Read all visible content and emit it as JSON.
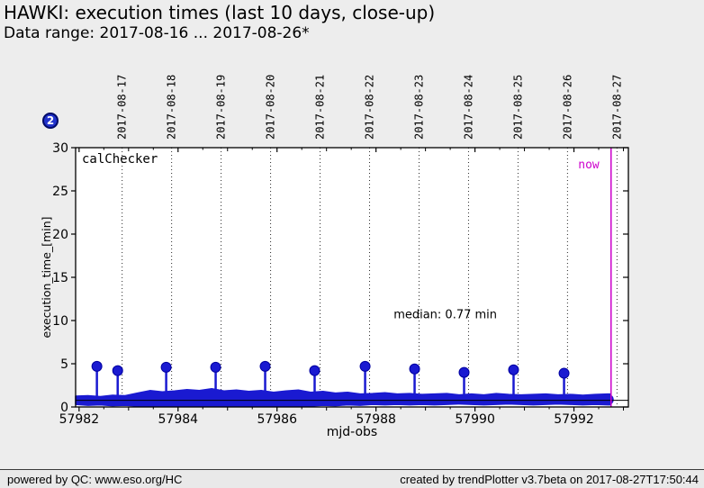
{
  "header": {
    "subtitle": "Data range: 2017-08-16 ... 2017-08-26*"
  },
  "badge": {
    "label": "2"
  },
  "footer": {
    "left": "powered by QC: www.eso.org/HC",
    "right": "created by trendPlotter v3.7beta on 2017-08-27T17:50:44"
  },
  "chart_data": {
    "type": "line",
    "title": "HAWKI: execution times (last 10 days, close-up)",
    "xlabel": "mjd-obs",
    "ylabel": "execution_time_[min]",
    "xlim": [
      57981.93,
      57993.1
    ],
    "ylim": [
      0,
      30
    ],
    "x_ticks_major": [
      57982,
      57984,
      57986,
      57988,
      57990,
      57992
    ],
    "x_ticks_minor": [
      57983,
      57985,
      57987,
      57989,
      57991,
      57993
    ],
    "x_ticks_small": [
      57982.5,
      57983.5,
      57984.5,
      57985.5,
      57986.5,
      57987.5,
      57988.5,
      57989.5,
      57990.5,
      57991.5,
      57992.5
    ],
    "y_ticks": [
      0,
      5,
      10,
      15,
      20,
      25,
      30
    ],
    "grid": "vertical-dotted-dates",
    "legend_label": "calChecker",
    "top_axis": {
      "dates": [
        "2017-08-17",
        "2017-08-18",
        "2017-08-19",
        "2017-08-20",
        "2017-08-21",
        "2017-08-22",
        "2017-08-23",
        "2017-08-24",
        "2017-08-25",
        "2017-08-26",
        "2017-08-27"
      ],
      "mjd": [
        57982.87,
        57983.87,
        57984.87,
        57985.87,
        57986.87,
        57987.87,
        57988.87,
        57989.87,
        57990.87,
        57991.87,
        57992.87
      ]
    },
    "median": {
      "value": 0.77,
      "label": "median: 0.77 min",
      "label_mjd": 57989.4,
      "label_y": 10.7
    },
    "now": {
      "mjd": 57992.75,
      "label": "now"
    },
    "spikes": [
      {
        "mjd": 57982.36,
        "value": 4.7
      },
      {
        "mjd": 57982.78,
        "value": 4.2
      },
      {
        "mjd": 57983.76,
        "value": 4.6
      },
      {
        "mjd": 57984.76,
        "value": 4.6
      },
      {
        "mjd": 57985.76,
        "value": 4.7
      },
      {
        "mjd": 57986.76,
        "value": 4.2
      },
      {
        "mjd": 57987.78,
        "value": 4.7
      },
      {
        "mjd": 57988.78,
        "value": 4.4
      },
      {
        "mjd": 57989.78,
        "value": 4.0
      },
      {
        "mjd": 57990.78,
        "value": 4.3
      },
      {
        "mjd": 57991.8,
        "value": 3.9
      }
    ],
    "band": {
      "x_start": 57981.93,
      "x_end": 57992.75,
      "step": 0.25,
      "hi": [
        1.25,
        1.3,
        1.2,
        1.35,
        1.3,
        1.6,
        1.9,
        1.75,
        1.85,
        2.0,
        1.9,
        2.1,
        1.85,
        1.95,
        1.8,
        1.9,
        1.7,
        1.85,
        1.95,
        1.7,
        1.8,
        1.6,
        1.7,
        1.5,
        1.55,
        1.65,
        1.5,
        1.55,
        1.45,
        1.5,
        1.55,
        1.4,
        1.5,
        1.4,
        1.55,
        1.45,
        1.4,
        1.45,
        1.5,
        1.4,
        1.45,
        1.35,
        1.45,
        1.5
      ],
      "lo": [
        0.3,
        0.2,
        0.25,
        0.15,
        0.2,
        0.1,
        0.15,
        0.1,
        0.05,
        0.1,
        0.05,
        0.1,
        0.05,
        0.1,
        0.15,
        0.1,
        0.05,
        0.1,
        0.15,
        0.1,
        0.2,
        0.15,
        0.25,
        0.2,
        0.3,
        0.25,
        0.3,
        0.25,
        0.3,
        0.25,
        0.3,
        0.35,
        0.3,
        0.25,
        0.3,
        0.35,
        0.3,
        0.25,
        0.3,
        0.35,
        0.3,
        0.25,
        0.3,
        0.25
      ]
    },
    "colors": {
      "data": "#1a1ad1",
      "data_edge": "#0000a0",
      "now": "#cc00cc",
      "grid": "#2a2a2a",
      "axis": "#000000",
      "plot_bg": "#ffffff",
      "median_line": "#000000"
    }
  }
}
